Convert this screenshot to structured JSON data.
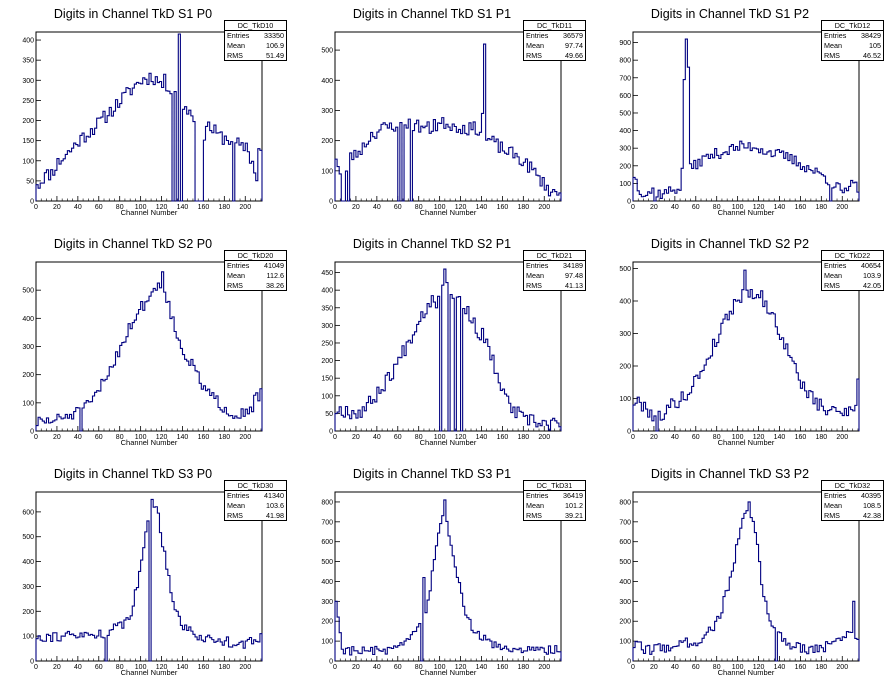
{
  "x_axis_title": "Channel Number",
  "stats_labels": {
    "entries": "Entries",
    "mean": "Mean",
    "rms": "RMS"
  },
  "line_color": "#000080",
  "chart_data": [
    {
      "type": "histogram",
      "title": "Digits in Channel TkD S1 P0",
      "hist_name": "DC_TkD10",
      "entries": "33350",
      "mean": "106.9",
      "rms": "51.49",
      "xlabel": "Channel Number",
      "xlim": [
        0,
        216
      ],
      "ylim": [
        0,
        420
      ],
      "xticks": [
        0,
        20,
        40,
        60,
        80,
        100,
        120,
        140,
        160,
        180,
        200
      ],
      "yticks": [
        0,
        50,
        100,
        150,
        200,
        250,
        300,
        350,
        400
      ],
      "profile": [
        [
          0,
          50
        ],
        [
          2,
          40
        ],
        [
          6,
          60
        ],
        [
          14,
          70
        ],
        [
          20,
          95
        ],
        [
          30,
          120
        ],
        [
          40,
          150
        ],
        [
          60,
          195
        ],
        [
          80,
          250
        ],
        [
          95,
          290
        ],
        [
          100,
          300
        ],
        [
          110,
          310
        ],
        [
          120,
          290
        ],
        [
          132,
          280
        ],
        [
          134,
          0
        ],
        [
          136,
          250
        ],
        [
          150,
          210
        ],
        [
          160,
          160
        ],
        [
          162,
          190
        ],
        [
          175,
          160
        ],
        [
          188,
          150
        ],
        [
          196,
          130
        ],
        [
          200,
          140
        ],
        [
          210,
          60
        ],
        [
          213,
          100
        ],
        [
          215,
          140
        ]
      ],
      "zero_ranges": [
        [
          129,
          132
        ],
        [
          138,
          140
        ],
        [
          151,
          160
        ],
        [
          188,
          189
        ]
      ],
      "spikes": [
        [
          137,
          415
        ],
        [
          123,
          315
        ],
        [
          212,
          130
        ]
      ],
      "noise": 18,
      "seed": 11
    },
    {
      "type": "histogram",
      "title": "Digits in Channel TkD S1 P1",
      "hist_name": "DC_TkD11",
      "entries": "36579",
      "mean": "97.74",
      "rms": "49.66",
      "xlabel": "Channel Number",
      "xlim": [
        0,
        216
      ],
      "ylim": [
        0,
        560
      ],
      "xticks": [
        0,
        20,
        40,
        60,
        80,
        100,
        120,
        140,
        160,
        180,
        200
      ],
      "yticks": [
        0,
        100,
        200,
        300,
        400,
        500
      ],
      "profile": [
        [
          0,
          150
        ],
        [
          2,
          120
        ],
        [
          8,
          20
        ],
        [
          12,
          150
        ],
        [
          18,
          150
        ],
        [
          26,
          180
        ],
        [
          34,
          220
        ],
        [
          44,
          240
        ],
        [
          56,
          250
        ],
        [
          66,
          260
        ],
        [
          76,
          250
        ],
        [
          90,
          240
        ],
        [
          104,
          260
        ],
        [
          112,
          250
        ],
        [
          124,
          240
        ],
        [
          136,
          240
        ],
        [
          140,
          210
        ],
        [
          148,
          200
        ],
        [
          160,
          170
        ],
        [
          172,
          150
        ],
        [
          186,
          110
        ],
        [
          198,
          60
        ],
        [
          206,
          30
        ],
        [
          216,
          20
        ]
      ],
      "zero_ranges": [
        [
          6,
          9
        ],
        [
          12,
          13
        ],
        [
          60,
          61
        ],
        [
          64,
          66
        ],
        [
          71,
          73
        ],
        [
          103,
          104
        ]
      ],
      "spikes": [
        [
          143,
          520
        ],
        [
          95,
          270
        ],
        [
          140,
          290
        ]
      ],
      "noise": 22,
      "seed": 23
    },
    {
      "type": "histogram",
      "title": "Digits in Channel TkD S1 P2",
      "hist_name": "DC_TkD12",
      "entries": "38429",
      "mean": "105",
      "rms": "46.52",
      "xlabel": "Channel Number",
      "xlim": [
        0,
        216
      ],
      "ylim": [
        0,
        960
      ],
      "xticks": [
        0,
        20,
        40,
        60,
        80,
        100,
        120,
        140,
        160,
        180,
        200
      ],
      "yticks": [
        0,
        100,
        200,
        300,
        400,
        500,
        600,
        700,
        800,
        900
      ],
      "profile": [
        [
          0,
          150
        ],
        [
          4,
          80
        ],
        [
          10,
          40
        ],
        [
          18,
          60
        ],
        [
          26,
          40
        ],
        [
          36,
          60
        ],
        [
          44,
          80
        ],
        [
          46,
          160
        ],
        [
          50,
          160
        ],
        [
          54,
          180
        ],
        [
          58,
          200
        ],
        [
          64,
          230
        ],
        [
          74,
          260
        ],
        [
          86,
          280
        ],
        [
          96,
          300
        ],
        [
          106,
          310
        ],
        [
          116,
          310
        ],
        [
          128,
          280
        ],
        [
          140,
          260
        ],
        [
          150,
          240
        ],
        [
          162,
          200
        ],
        [
          172,
          170
        ],
        [
          182,
          140
        ],
        [
          190,
          100
        ],
        [
          198,
          60
        ],
        [
          204,
          40
        ],
        [
          210,
          120
        ],
        [
          212,
          80
        ]
      ],
      "zero_ranges": [
        [
          20,
          22
        ],
        [
          102,
          104
        ],
        [
          188,
          190
        ]
      ],
      "spikes": [
        [
          48,
          690
        ],
        [
          50,
          920
        ],
        [
          52,
          760
        ],
        [
          102,
          340
        ]
      ],
      "noise": 32,
      "seed": 37
    },
    {
      "type": "histogram",
      "title": "Digits in Channel TkD S2 P0",
      "hist_name": "DC_TkD20",
      "entries": "41049",
      "mean": "112.6",
      "rms": "38.26",
      "xlabel": "Channel Number",
      "xlim": [
        0,
        216
      ],
      "ylim": [
        0,
        600
      ],
      "xticks": [
        0,
        20,
        40,
        60,
        80,
        100,
        120,
        140,
        160,
        180,
        200
      ],
      "yticks": [
        0,
        100,
        200,
        300,
        400,
        500
      ],
      "profile": [
        [
          0,
          30
        ],
        [
          20,
          40
        ],
        [
          40,
          70
        ],
        [
          50,
          90
        ],
        [
          60,
          150
        ],
        [
          70,
          220
        ],
        [
          80,
          300
        ],
        [
          90,
          380
        ],
        [
          100,
          440
        ],
        [
          108,
          480
        ],
        [
          116,
          520
        ],
        [
          122,
          500
        ],
        [
          128,
          420
        ],
        [
          134,
          330
        ],
        [
          142,
          270
        ],
        [
          150,
          220
        ],
        [
          160,
          150
        ],
        [
          170,
          110
        ],
        [
          180,
          80
        ],
        [
          190,
          60
        ],
        [
          200,
          70
        ],
        [
          206,
          90
        ],
        [
          210,
          120
        ],
        [
          214,
          100
        ],
        [
          216,
          70
        ]
      ],
      "zero_ranges": [
        [
          42,
          43
        ]
      ],
      "spikes": [
        [
          120,
          565
        ],
        [
          127,
          460
        ],
        [
          214,
          150
        ]
      ],
      "noise": 22,
      "seed": 51
    },
    {
      "type": "histogram",
      "title": "Digits in Channel TkD S2 P1",
      "hist_name": "DC_TkD21",
      "entries": "34189",
      "mean": "97.48",
      "rms": "41.13",
      "xlabel": "Channel Number",
      "xlim": [
        0,
        216
      ],
      "ylim": [
        0,
        480
      ],
      "xticks": [
        0,
        20,
        40,
        60,
        80,
        100,
        120,
        140,
        160,
        180,
        200
      ],
      "yticks": [
        0,
        50,
        100,
        150,
        200,
        250,
        300,
        350,
        400,
        450
      ],
      "profile": [
        [
          0,
          60
        ],
        [
          10,
          60
        ],
        [
          20,
          50
        ],
        [
          30,
          70
        ],
        [
          40,
          110
        ],
        [
          50,
          150
        ],
        [
          60,
          200
        ],
        [
          70,
          260
        ],
        [
          80,
          320
        ],
        [
          90,
          370
        ],
        [
          100,
          400
        ],
        [
          108,
          410
        ],
        [
          116,
          380
        ],
        [
          124,
          350
        ],
        [
          132,
          300
        ],
        [
          140,
          270
        ],
        [
          150,
          200
        ],
        [
          160,
          100
        ],
        [
          170,
          60
        ],
        [
          180,
          30
        ],
        [
          190,
          25
        ],
        [
          200,
          20
        ],
        [
          210,
          20
        ],
        [
          216,
          15
        ]
      ],
      "zero_ranges": [
        [
          100,
          102
        ],
        [
          108,
          110
        ],
        [
          114,
          116
        ],
        [
          120,
          122
        ]
      ],
      "spikes": [
        [
          104,
          460
        ],
        [
          96,
          350
        ],
        [
          146,
          240
        ]
      ],
      "noise": 22,
      "seed": 67
    },
    {
      "type": "histogram",
      "title": "Digits in Channel TkD S2 P2",
      "hist_name": "DC_TkD22",
      "entries": "40654",
      "mean": "103.9",
      "rms": "42.05",
      "xlabel": "Channel Number",
      "xlim": [
        0,
        216
      ],
      "ylim": [
        0,
        520
      ],
      "xticks": [
        0,
        20,
        40,
        60,
        80,
        100,
        120,
        140,
        160,
        180,
        200
      ],
      "yticks": [
        0,
        100,
        200,
        300,
        400,
        500
      ],
      "profile": [
        [
          0,
          90
        ],
        [
          10,
          80
        ],
        [
          20,
          40
        ],
        [
          30,
          60
        ],
        [
          40,
          90
        ],
        [
          50,
          110
        ],
        [
          60,
          160
        ],
        [
          70,
          220
        ],
        [
          80,
          290
        ],
        [
          90,
          360
        ],
        [
          100,
          410
        ],
        [
          110,
          430
        ],
        [
          120,
          420
        ],
        [
          130,
          370
        ],
        [
          140,
          300
        ],
        [
          150,
          220
        ],
        [
          160,
          150
        ],
        [
          170,
          100
        ],
        [
          180,
          70
        ],
        [
          190,
          60
        ],
        [
          200,
          60
        ],
        [
          210,
          80
        ],
        [
          214,
          80
        ]
      ],
      "zero_ranges": [
        [
          22,
          24
        ]
      ],
      "spikes": [
        [
          106,
          495
        ],
        [
          214,
          160
        ]
      ],
      "noise": 22,
      "seed": 79
    },
    {
      "type": "histogram",
      "title": "Digits in Channel TkD S3 P0",
      "hist_name": "DC_TkD30",
      "entries": "41340",
      "mean": "103.6",
      "rms": "41.98",
      "xlabel": "Channel Number",
      "xlim": [
        0,
        216
      ],
      "ylim": [
        0,
        680
      ],
      "xticks": [
        0,
        20,
        40,
        60,
        80,
        100,
        120,
        140,
        160,
        180,
        200
      ],
      "yticks": [
        0,
        100,
        200,
        300,
        400,
        500,
        600
      ],
      "profile": [
        [
          0,
          100
        ],
        [
          20,
          100
        ],
        [
          40,
          100
        ],
        [
          60,
          110
        ],
        [
          70,
          120
        ],
        [
          80,
          140
        ],
        [
          90,
          200
        ],
        [
          96,
          300
        ],
        [
          100,
          400
        ],
        [
          104,
          520
        ],
        [
          108,
          600
        ],
        [
          112,
          630
        ],
        [
          116,
          580
        ],
        [
          120,
          480
        ],
        [
          126,
          340
        ],
        [
          132,
          210
        ],
        [
          140,
          140
        ],
        [
          150,
          110
        ],
        [
          160,
          90
        ],
        [
          180,
          80
        ],
        [
          200,
          70
        ],
        [
          210,
          80
        ],
        [
          216,
          90
        ]
      ],
      "zero_ranges": [
        [
          66,
          67
        ],
        [
          108,
          110
        ]
      ],
      "spikes": [
        [
          110,
          650
        ],
        [
          214,
          110
        ]
      ],
      "noise": 22,
      "seed": 91
    },
    {
      "type": "histogram",
      "title": "Digits in Channel TkD S3 P1",
      "hist_name": "DC_TkD31",
      "entries": "36419",
      "mean": "101.2",
      "rms": "39.21",
      "xlabel": "Channel Number",
      "xlim": [
        0,
        216
      ],
      "ylim": [
        0,
        850
      ],
      "xticks": [
        0,
        20,
        40,
        60,
        80,
        100,
        120,
        140,
        160,
        180,
        200
      ],
      "yticks": [
        0,
        100,
        200,
        300,
        400,
        500,
        600,
        700,
        800
      ],
      "profile": [
        [
          0,
          280
        ],
        [
          4,
          150
        ],
        [
          6,
          60
        ],
        [
          20,
          50
        ],
        [
          40,
          50
        ],
        [
          60,
          60
        ],
        [
          70,
          100
        ],
        [
          80,
          180
        ],
        [
          86,
          260
        ],
        [
          92,
          430
        ],
        [
          98,
          620
        ],
        [
          102,
          720
        ],
        [
          106,
          680
        ],
        [
          110,
          560
        ],
        [
          116,
          420
        ],
        [
          122,
          280
        ],
        [
          128,
          190
        ],
        [
          136,
          130
        ],
        [
          150,
          80
        ],
        [
          170,
          60
        ],
        [
          190,
          50
        ],
        [
          210,
          60
        ],
        [
          216,
          60
        ]
      ],
      "zero_ranges": [
        [
          82,
          83
        ]
      ],
      "spikes": [
        [
          104,
          810
        ],
        [
          84,
          420
        ],
        [
          1,
          300
        ]
      ],
      "noise": 24,
      "seed": 103
    },
    {
      "type": "histogram",
      "title": "Digits in Channel TkD S3 P2",
      "hist_name": "DC_TkD32",
      "entries": "40395",
      "mean": "108.5",
      "rms": "42.38",
      "xlabel": "Channel Number",
      "xlim": [
        0,
        216
      ],
      "ylim": [
        0,
        850
      ],
      "xticks": [
        0,
        20,
        40,
        60,
        80,
        100,
        120,
        140,
        160,
        180,
        200
      ],
      "yticks": [
        0,
        100,
        200,
        300,
        400,
        500,
        600,
        700,
        800
      ],
      "profile": [
        [
          0,
          80
        ],
        [
          10,
          60
        ],
        [
          20,
          60
        ],
        [
          40,
          80
        ],
        [
          60,
          100
        ],
        [
          70,
          140
        ],
        [
          80,
          200
        ],
        [
          86,
          300
        ],
        [
          92,
          420
        ],
        [
          98,
          560
        ],
        [
          104,
          700
        ],
        [
          110,
          760
        ],
        [
          114,
          700
        ],
        [
          118,
          560
        ],
        [
          122,
          400
        ],
        [
          128,
          240
        ],
        [
          134,
          160
        ],
        [
          150,
          80
        ],
        [
          170,
          60
        ],
        [
          190,
          80
        ],
        [
          200,
          120
        ],
        [
          208,
          160
        ],
        [
          212,
          100
        ]
      ],
      "zero_ranges": [
        [
          136,
          137
        ]
      ],
      "spikes": [
        [
          110,
          800
        ],
        [
          210,
          300
        ]
      ],
      "noise": 28,
      "seed": 117
    }
  ]
}
